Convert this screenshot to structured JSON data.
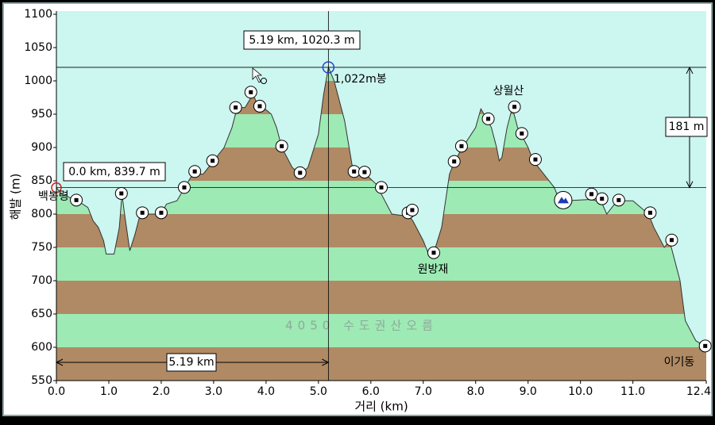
{
  "chart_data": {
    "type": "area",
    "x_label": "거리 (km)",
    "y_label": "해발 (m)",
    "watermark": "4050 수도권산오름",
    "xlim": [
      0,
      12.4
    ],
    "ylim": [
      550,
      1100
    ],
    "xticks": [
      {
        "value": 0,
        "label": "0.0"
      },
      {
        "value": 1,
        "label": "1.0"
      },
      {
        "value": 2,
        "label": "2.0"
      },
      {
        "value": 3,
        "label": "3.0"
      },
      {
        "value": 4,
        "label": "4.0"
      },
      {
        "value": 5,
        "label": "5.0"
      },
      {
        "value": 6,
        "label": "6.0"
      },
      {
        "value": 7,
        "label": "7.0"
      },
      {
        "value": 8,
        "label": "8.0"
      },
      {
        "value": 9,
        "label": "9.0"
      },
      {
        "value": 10,
        "label": "10.0"
      },
      {
        "value": 11,
        "label": "11.0"
      },
      {
        "value": 12.4,
        "label": "12.4"
      }
    ],
    "yticks": [
      550,
      600,
      650,
      700,
      750,
      800,
      850,
      900,
      950,
      1000,
      1050,
      1100
    ],
    "band_colors": [
      "#b08a64",
      "#9deab4"
    ],
    "sky_color": "#ccf6f0",
    "line_color": "#333333",
    "x": [
      0,
      0.1,
      0.4,
      0.6,
      0.7,
      0.8,
      0.9,
      0.95,
      1.1,
      1.2,
      1.25,
      1.3,
      1.4,
      1.5,
      1.6,
      2.0,
      2.1,
      2.3,
      2.45,
      2.6,
      2.8,
      3.0,
      3.2,
      3.35,
      3.45,
      3.6,
      3.75,
      3.85,
      3.95,
      4.1,
      4.2,
      4.3,
      4.5,
      4.65,
      4.8,
      5.0,
      5.1,
      5.19,
      5.3,
      5.5,
      5.65,
      5.75,
      5.9,
      6.1,
      6.2,
      6.4,
      6.6,
      6.7,
      6.8,
      7.0,
      7.1,
      7.2,
      7.35,
      7.5,
      7.6,
      7.75,
      8.0,
      8.1,
      8.2,
      8.3,
      8.4,
      8.45,
      8.5,
      8.6,
      8.7,
      8.8,
      9.0,
      9.1,
      9.3,
      9.5,
      9.6,
      9.7,
      10.2,
      10.4,
      10.5,
      10.6,
      10.7,
      11.0,
      11.3,
      11.4,
      11.6,
      11.7,
      11.9,
      12.0,
      12.2,
      12.4
    ],
    "values": [
      839.7,
      830,
      820,
      810,
      790,
      780,
      760,
      740,
      740,
      780,
      830,
      800,
      745,
      770,
      800,
      800,
      815,
      820,
      840,
      860,
      860,
      880,
      900,
      930,
      960,
      960,
      980,
      962,
      960,
      950,
      930,
      900,
      870,
      860,
      870,
      920,
      980,
      1020.3,
      1000,
      940,
      870,
      862,
      860,
      845,
      830,
      800,
      798,
      800,
      790,
      760,
      740,
      742,
      780,
      860,
      880,
      900,
      930,
      958,
      945,
      930,
      900,
      880,
      885,
      930,
      960,
      930,
      900,
      880,
      860,
      840,
      820,
      820,
      822,
      818,
      800,
      810,
      820,
      820,
      800,
      780,
      750,
      760,
      700,
      640,
      610,
      600
    ],
    "waypoints": {
      "x": [
        0.38,
        1.24,
        1.64,
        2.0,
        2.44,
        2.64,
        2.98,
        3.42,
        3.71,
        3.88,
        4.3,
        4.65,
        5.68,
        5.88,
        6.2,
        6.71,
        6.79,
        7.2,
        7.59,
        7.73,
        8.24,
        8.74,
        8.88,
        9.14,
        9.67,
        10.21,
        10.41,
        10.73,
        11.33,
        11.74,
        12.38
      ],
      "values": [
        821,
        831,
        802,
        802,
        840,
        864,
        880,
        960,
        983,
        962,
        902,
        862,
        864,
        863,
        840,
        802,
        806,
        742,
        879,
        902,
        943,
        961,
        921,
        882,
        821,
        830,
        823,
        821,
        802,
        761,
        602
      ]
    },
    "places": [
      "백봉령",
      "1,022m봉",
      "상월산",
      "원방재",
      "이기동"
    ],
    "cursor": {
      "x": 5.19,
      "y": 1020.3,
      "label": "5.19 km, 1020.3 m"
    },
    "reference": {
      "x": 0,
      "y": 839.7,
      "label": "0.0 km, 839.7 m"
    },
    "height_diff": "181 m",
    "distance": "5.19 km"
  }
}
